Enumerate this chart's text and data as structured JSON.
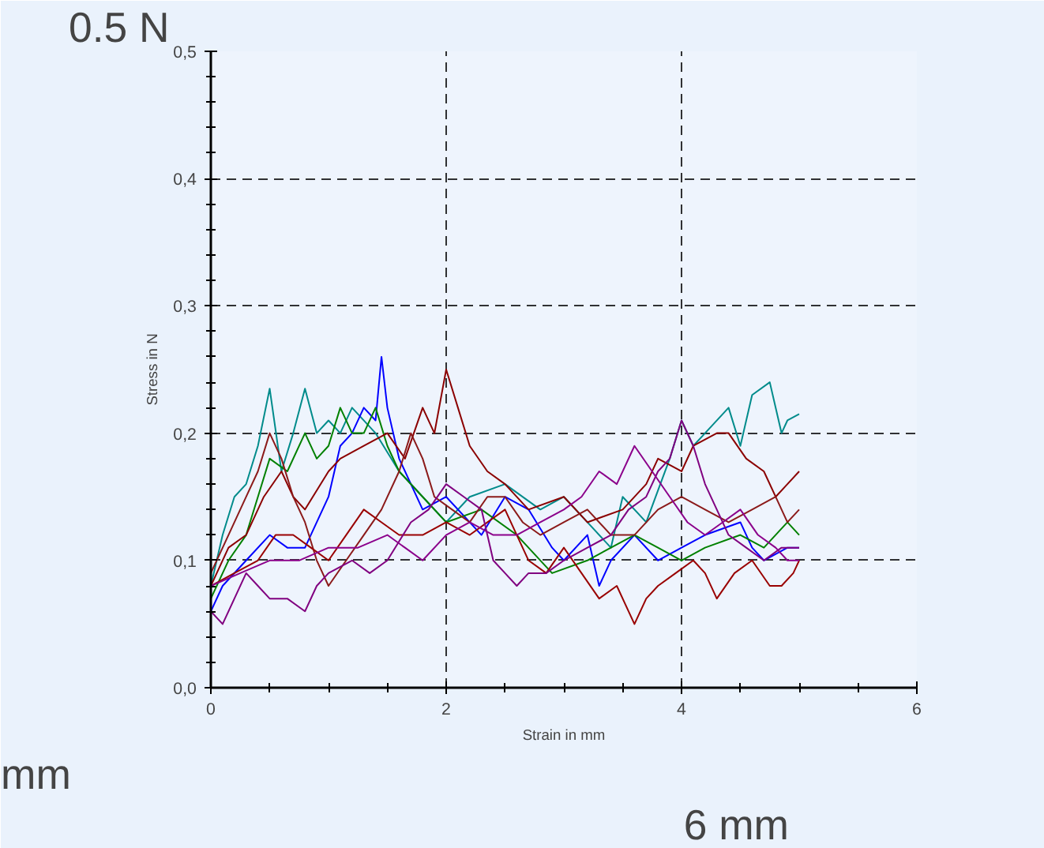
{
  "chart_data": {
    "type": "line",
    "xlabel": "Strain in mm",
    "ylabel": "Stress in N",
    "annotations": [
      "0.5 N",
      "mm",
      "6 mm"
    ],
    "xlim": [
      0,
      6
    ],
    "ylim": [
      0,
      0.5
    ],
    "xticks": [
      0,
      2,
      4,
      6
    ],
    "yticks": [
      {
        "value": 0,
        "label": "0,0"
      },
      {
        "value": 0.1,
        "label": "0,1"
      },
      {
        "value": 0.2,
        "label": "0,2"
      },
      {
        "value": 0.3,
        "label": "0,3"
      },
      {
        "value": 0.4,
        "label": "0,4"
      },
      {
        "value": 0.5,
        "label": "0,5"
      }
    ],
    "grid": true,
    "line_style": "solid",
    "series": [
      {
        "color": "#008b8b",
        "x": [
          0,
          0.1,
          0.2,
          0.3,
          0.4,
          0.5,
          0.6,
          0.7,
          0.8,
          0.9,
          1.0,
          1.1,
          1.2,
          1.4,
          1.6,
          1.8,
          2.0,
          2.2,
          2.5,
          2.8,
          3.0,
          3.2,
          3.4,
          3.5,
          3.7,
          3.9,
          4.0,
          4.1,
          4.2,
          4.4,
          4.5,
          4.6,
          4.75,
          4.85,
          4.9,
          5.0
        ],
        "values": [
          0.08,
          0.12,
          0.15,
          0.16,
          0.19,
          0.235,
          0.17,
          0.2,
          0.235,
          0.2,
          0.21,
          0.2,
          0.22,
          0.2,
          0.17,
          0.15,
          0.13,
          0.15,
          0.16,
          0.14,
          0.15,
          0.13,
          0.11,
          0.15,
          0.13,
          0.18,
          0.21,
          0.19,
          0.2,
          0.22,
          0.19,
          0.23,
          0.24,
          0.2,
          0.21,
          0.215
        ]
      },
      {
        "color": "#0000ff",
        "x": [
          0,
          0.1,
          0.3,
          0.5,
          0.65,
          0.8,
          1.0,
          1.1,
          1.2,
          1.3,
          1.4,
          1.45,
          1.5,
          1.6,
          1.8,
          2.0,
          2.2,
          2.3,
          2.5,
          2.7,
          2.9,
          3.0,
          3.2,
          3.3,
          3.4,
          3.6,
          3.8,
          4.0,
          4.2,
          4.5,
          4.6,
          4.7,
          4.9,
          5.0
        ],
        "values": [
          0.06,
          0.08,
          0.1,
          0.12,
          0.11,
          0.11,
          0.15,
          0.19,
          0.2,
          0.22,
          0.21,
          0.26,
          0.22,
          0.18,
          0.14,
          0.15,
          0.13,
          0.12,
          0.15,
          0.14,
          0.11,
          0.1,
          0.12,
          0.08,
          0.1,
          0.12,
          0.1,
          0.11,
          0.12,
          0.13,
          0.11,
          0.1,
          0.11,
          0.11
        ]
      },
      {
        "color": "#008000",
        "x": [
          0,
          0.15,
          0.3,
          0.4,
          0.5,
          0.65,
          0.8,
          0.9,
          1.0,
          1.1,
          1.2,
          1.3,
          1.4,
          1.5,
          1.6,
          1.8,
          2.0,
          2.3,
          2.6,
          2.9,
          3.2,
          3.4,
          3.6,
          3.8,
          4.0,
          4.2,
          4.5,
          4.7,
          4.9,
          5.0
        ],
        "values": [
          0.07,
          0.1,
          0.12,
          0.15,
          0.18,
          0.17,
          0.2,
          0.18,
          0.19,
          0.22,
          0.2,
          0.2,
          0.22,
          0.19,
          0.17,
          0.15,
          0.13,
          0.14,
          0.12,
          0.09,
          0.1,
          0.11,
          0.12,
          0.11,
          0.1,
          0.11,
          0.12,
          0.11,
          0.13,
          0.12
        ]
      },
      {
        "color": "#8b0000",
        "x": [
          0,
          0.15,
          0.3,
          0.45,
          0.6,
          0.7,
          0.8,
          1.0,
          1.1,
          1.3,
          1.5,
          1.65,
          1.8,
          1.9,
          2.0,
          2.1,
          2.2,
          2.35,
          2.5,
          2.7,
          3.0,
          3.2,
          3.5,
          3.7,
          3.8,
          4.0,
          4.1,
          4.3,
          4.4,
          4.55,
          4.7,
          4.8,
          4.9,
          5.0
        ],
        "values": [
          0.08,
          0.11,
          0.12,
          0.15,
          0.17,
          0.15,
          0.14,
          0.17,
          0.18,
          0.19,
          0.2,
          0.18,
          0.22,
          0.2,
          0.25,
          0.22,
          0.19,
          0.17,
          0.16,
          0.14,
          0.15,
          0.13,
          0.14,
          0.16,
          0.18,
          0.17,
          0.19,
          0.2,
          0.2,
          0.18,
          0.17,
          0.15,
          0.16,
          0.17
        ]
      },
      {
        "color": "#8b1a1a",
        "x": [
          0,
          0.15,
          0.3,
          0.4,
          0.5,
          0.6,
          0.7,
          0.8,
          0.9,
          1.0,
          1.15,
          1.3,
          1.45,
          1.6,
          1.7,
          1.8,
          1.9,
          2.05,
          2.2,
          2.35,
          2.5,
          2.65,
          2.8,
          3.0,
          3.2,
          3.4,
          3.6,
          3.8,
          4.0,
          4.2,
          4.4,
          4.6,
          4.8,
          4.9,
          5.0
        ],
        "values": [
          0.09,
          0.12,
          0.15,
          0.17,
          0.2,
          0.18,
          0.15,
          0.13,
          0.1,
          0.08,
          0.1,
          0.12,
          0.14,
          0.17,
          0.2,
          0.18,
          0.15,
          0.14,
          0.13,
          0.15,
          0.15,
          0.13,
          0.12,
          0.13,
          0.14,
          0.12,
          0.12,
          0.14,
          0.15,
          0.14,
          0.13,
          0.14,
          0.15,
          0.13,
          0.14
        ]
      },
      {
        "color": "#990000",
        "x": [
          0,
          0.2,
          0.4,
          0.55,
          0.7,
          0.85,
          1.0,
          1.15,
          1.3,
          1.45,
          1.6,
          1.8,
          2.0,
          2.2,
          2.5,
          2.7,
          2.85,
          3.0,
          3.15,
          3.3,
          3.45,
          3.6,
          3.7,
          3.8,
          3.95,
          4.1,
          4.2,
          4.3,
          4.45,
          4.6,
          4.75,
          4.85,
          4.95,
          5.0
        ],
        "values": [
          0.08,
          0.09,
          0.1,
          0.12,
          0.12,
          0.11,
          0.1,
          0.12,
          0.14,
          0.13,
          0.12,
          0.12,
          0.13,
          0.12,
          0.14,
          0.1,
          0.09,
          0.11,
          0.09,
          0.07,
          0.08,
          0.05,
          0.07,
          0.08,
          0.09,
          0.1,
          0.09,
          0.07,
          0.09,
          0.1,
          0.08,
          0.08,
          0.09,
          0.1
        ]
      },
      {
        "color": "#800080",
        "x": [
          0,
          0.1,
          0.2,
          0.3,
          0.4,
          0.5,
          0.65,
          0.8,
          0.9,
          1.0,
          1.2,
          1.35,
          1.5,
          1.7,
          1.85,
          2.0,
          2.15,
          2.3,
          2.4,
          2.5,
          2.6,
          2.7,
          2.85,
          3.0,
          3.2,
          3.4,
          3.55,
          3.7,
          3.8,
          3.9,
          4.0,
          4.1,
          4.2,
          4.3,
          4.4,
          4.55,
          4.7,
          4.85,
          5.0
        ],
        "values": [
          0.06,
          0.05,
          0.07,
          0.09,
          0.08,
          0.07,
          0.07,
          0.06,
          0.08,
          0.09,
          0.1,
          0.09,
          0.1,
          0.13,
          0.14,
          0.16,
          0.15,
          0.14,
          0.1,
          0.09,
          0.08,
          0.09,
          0.09,
          0.1,
          0.11,
          0.12,
          0.14,
          0.15,
          0.17,
          0.18,
          0.21,
          0.19,
          0.16,
          0.14,
          0.12,
          0.11,
          0.1,
          0.11,
          0.11
        ]
      },
      {
        "color": "#8b008b",
        "x": [
          0,
          0.25,
          0.5,
          0.75,
          1.0,
          1.25,
          1.5,
          1.65,
          1.8,
          2.0,
          2.2,
          2.4,
          2.6,
          2.8,
          3.0,
          3.15,
          3.3,
          3.45,
          3.6,
          3.75,
          3.9,
          4.05,
          4.2,
          4.35,
          4.5,
          4.65,
          4.8,
          4.9,
          5.0
        ],
        "values": [
          0.08,
          0.09,
          0.1,
          0.1,
          0.11,
          0.11,
          0.12,
          0.11,
          0.1,
          0.12,
          0.13,
          0.12,
          0.12,
          0.13,
          0.14,
          0.15,
          0.17,
          0.16,
          0.19,
          0.17,
          0.15,
          0.13,
          0.12,
          0.13,
          0.14,
          0.12,
          0.11,
          0.1,
          0.1
        ]
      }
    ]
  }
}
